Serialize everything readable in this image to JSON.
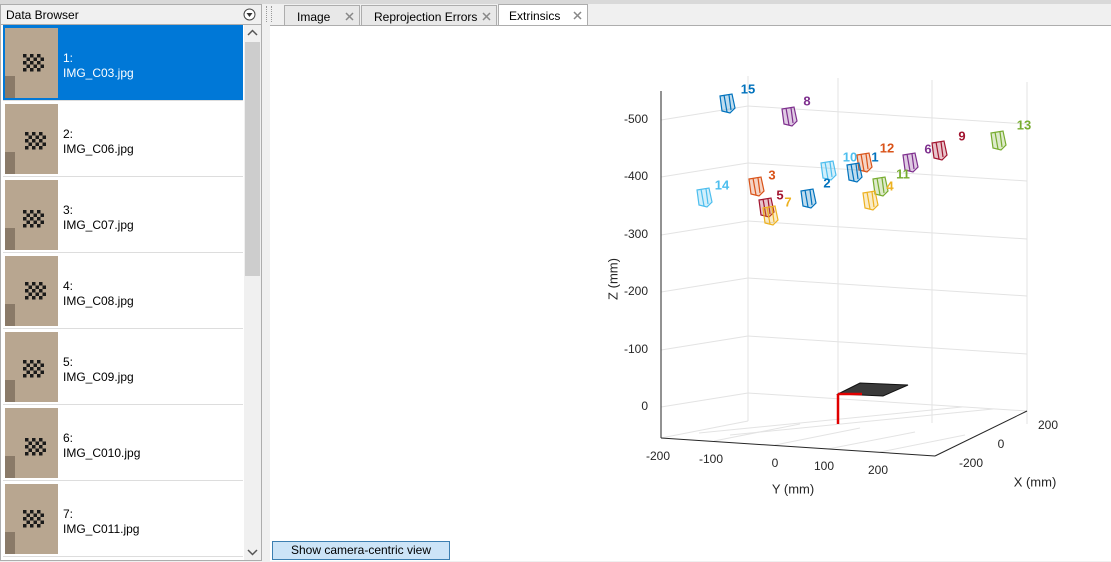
{
  "header": {
    "panel_title": "Data Browser"
  },
  "images": [
    {
      "index": "1:",
      "file": "IMG_C03.jpg"
    },
    {
      "index": "2:",
      "file": "IMG_C06.jpg"
    },
    {
      "index": "3:",
      "file": "IMG_C07.jpg"
    },
    {
      "index": "4:",
      "file": "IMG_C08.jpg"
    },
    {
      "index": "5:",
      "file": "IMG_C09.jpg"
    },
    {
      "index": "6:",
      "file": "IMG_C010.jpg"
    },
    {
      "index": "7:",
      "file": "IMG_C011.jpg"
    }
  ],
  "tabs": [
    "Image",
    "Reprojection Errors",
    "Extrinsics"
  ],
  "plot": {
    "z_label": "Z (mm)",
    "y_label": "Y (mm)",
    "x_label": "X (mm)",
    "z_ticks": [
      -500,
      -400,
      -300,
      -200,
      -100,
      0
    ],
    "y_ticks": [
      -200,
      -100,
      0,
      100,
      200
    ],
    "x_ticks": [
      200,
      0,
      -200
    ],
    "camera_labels": [
      15,
      8,
      13,
      9,
      6,
      12,
      10,
      1,
      3,
      11,
      2,
      4,
      14,
      5,
      7
    ]
  },
  "button": "Show camera-centric view"
}
